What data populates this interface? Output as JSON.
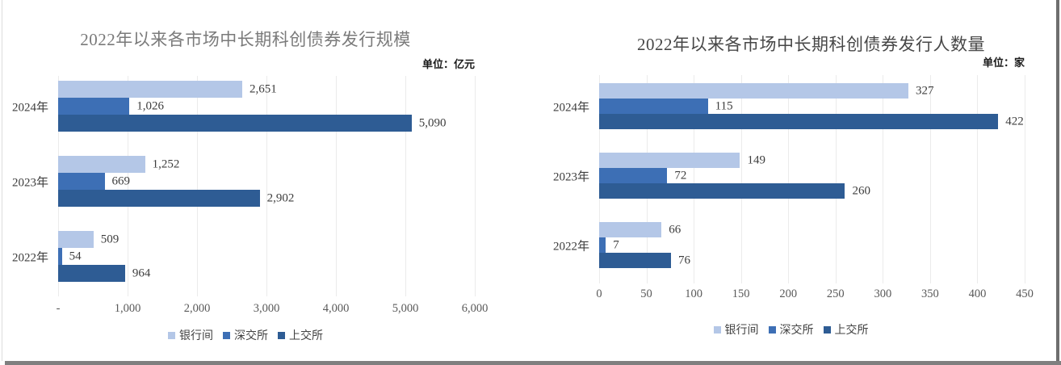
{
  "window": {
    "background_color": "#ffffff",
    "bottom_bar_color": "#7f7f7f",
    "right_edge_line_color": "#6e6e6e",
    "left_edge_line_color": "#dcdcdc"
  },
  "series_colors": {
    "yinhangjian": "#b4c7e7",
    "shenjiaosuo": "#3d6fb5",
    "shangjiaosuo": "#2e5c94"
  },
  "chart_data": [
    {
      "type": "bar",
      "orientation": "horizontal",
      "title": "2022年以来各市场中长期科创债券发行规模",
      "unit_label": "单位：亿元",
      "categories": [
        "2024年",
        "2023年",
        "2022年"
      ],
      "series": [
        {
          "name": "银行间",
          "color": "#b4c7e7",
          "values": [
            2651,
            1252,
            509
          ],
          "labels": [
            "2,651",
            "1,252",
            "509"
          ]
        },
        {
          "name": "深交所",
          "color": "#3d6fb5",
          "values": [
            1026,
            669,
            54
          ],
          "labels": [
            "1,026",
            "669",
            "54"
          ]
        },
        {
          "name": "上交所",
          "color": "#2e5c94",
          "values": [
            5090,
            2902,
            964
          ],
          "labels": [
            "5,090",
            "2,902",
            "964"
          ]
        }
      ],
      "axis": {
        "min": 0,
        "max": 6000,
        "ticks": [
          {
            "value": 0,
            "label": "-"
          },
          {
            "value": 1000,
            "label": "1,000"
          },
          {
            "value": 2000,
            "label": "2,000"
          },
          {
            "value": 3000,
            "label": "3,000"
          },
          {
            "value": 4000,
            "label": "4,000"
          },
          {
            "value": 5000,
            "label": "5,000"
          },
          {
            "value": 6000,
            "label": "6,000"
          }
        ]
      },
      "grid": true,
      "legend_position": "bottom"
    },
    {
      "type": "bar",
      "orientation": "horizontal",
      "title": "2022年以来各市场中长期科创债券发行人数量",
      "unit_label": "单位：家",
      "categories": [
        "2024年",
        "2023年",
        "2022年"
      ],
      "series": [
        {
          "name": "银行间",
          "color": "#b4c7e7",
          "values": [
            327,
            149,
            66
          ],
          "labels": [
            "327",
            "149",
            "66"
          ]
        },
        {
          "name": "深交所",
          "color": "#3d6fb5",
          "values": [
            115,
            72,
            7
          ],
          "labels": [
            "115",
            "72",
            "7"
          ]
        },
        {
          "name": "上交所",
          "color": "#2e5c94",
          "values": [
            422,
            260,
            76
          ],
          "labels": [
            "422",
            "260",
            "76"
          ]
        }
      ],
      "axis": {
        "min": 0,
        "max": 450,
        "ticks": [
          {
            "value": 0,
            "label": "0"
          },
          {
            "value": 50,
            "label": "50"
          },
          {
            "value": 100,
            "label": "100"
          },
          {
            "value": 150,
            "label": "150"
          },
          {
            "value": 200,
            "label": "200"
          },
          {
            "value": 250,
            "label": "250"
          },
          {
            "value": 300,
            "label": "300"
          },
          {
            "value": 350,
            "label": "350"
          },
          {
            "value": 400,
            "label": "400"
          },
          {
            "value": 450,
            "label": "450"
          }
        ]
      },
      "grid": true,
      "legend_position": "bottom"
    }
  ]
}
